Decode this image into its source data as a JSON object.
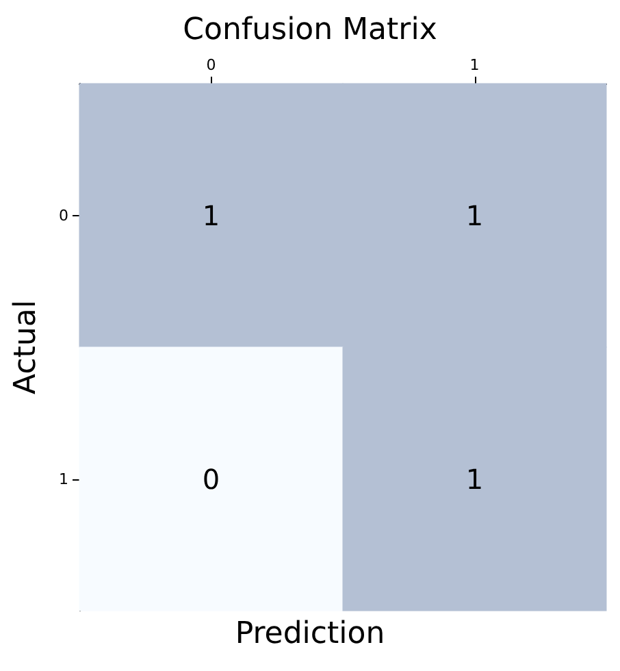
{
  "chart_data": {
    "type": "heatmap",
    "title": "Confusion Matrix",
    "xlabel": "Prediction",
    "ylabel": "Actual",
    "categories": [
      "0",
      "1"
    ],
    "y_categories": [
      "0",
      "1"
    ],
    "cells": [
      [
        1,
        1
      ],
      [
        0,
        1
      ]
    ],
    "data_labels": true
  }
}
